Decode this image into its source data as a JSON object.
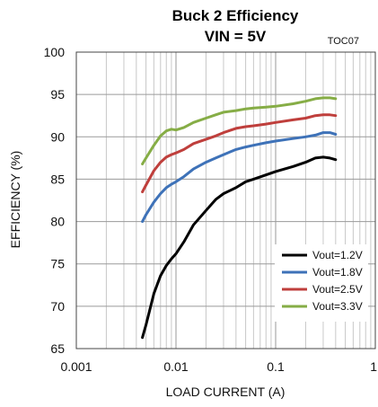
{
  "chart_data": {
    "type": "line",
    "title": "Buck 2 Efficiency",
    "subtitle": "VIN = 5V",
    "figure_id": "TOC07",
    "xlabel": "LOAD CURRENT (A)",
    "ylabel": "EFFICIENCY (%)",
    "xscale": "log",
    "xlim": [
      0.001,
      1
    ],
    "ylim": [
      65,
      100
    ],
    "x_ticks": [
      0.001,
      0.01,
      0.1,
      1
    ],
    "x_tick_labels": [
      "0.001",
      "0.01",
      "0.1",
      "1"
    ],
    "y_ticks": [
      65,
      70,
      75,
      80,
      85,
      90,
      95,
      100
    ],
    "y_tick_labels": [
      "65",
      "70",
      "75",
      "80",
      "85",
      "90",
      "95",
      "100"
    ],
    "grid": true,
    "legend_position": "bottom-right",
    "series": [
      {
        "name": "Vout=1.2V",
        "color": "#000000",
        "points": [
          [
            0.0046,
            66.3
          ],
          [
            0.005,
            67.8
          ],
          [
            0.006,
            71.5
          ],
          [
            0.007,
            73.6
          ],
          [
            0.008,
            74.8
          ],
          [
            0.009,
            75.6
          ],
          [
            0.01,
            76.2
          ],
          [
            0.012,
            77.6
          ],
          [
            0.015,
            79.6
          ],
          [
            0.02,
            81.3
          ],
          [
            0.025,
            82.6
          ],
          [
            0.03,
            83.3
          ],
          [
            0.04,
            84.0
          ],
          [
            0.05,
            84.7
          ],
          [
            0.06,
            85.0
          ],
          [
            0.08,
            85.5
          ],
          [
            0.1,
            85.9
          ],
          [
            0.15,
            86.5
          ],
          [
            0.2,
            87.0
          ],
          [
            0.25,
            87.5
          ],
          [
            0.3,
            87.6
          ],
          [
            0.35,
            87.5
          ],
          [
            0.4,
            87.3
          ]
        ]
      },
      {
        "name": "Vout=1.8V",
        "color": "#3e72b8",
        "points": [
          [
            0.0046,
            80.0
          ],
          [
            0.005,
            80.8
          ],
          [
            0.006,
            82.3
          ],
          [
            0.007,
            83.3
          ],
          [
            0.008,
            84.0
          ],
          [
            0.009,
            84.4
          ],
          [
            0.01,
            84.7
          ],
          [
            0.012,
            85.3
          ],
          [
            0.015,
            86.2
          ],
          [
            0.02,
            87.0
          ],
          [
            0.025,
            87.5
          ],
          [
            0.03,
            87.9
          ],
          [
            0.04,
            88.5
          ],
          [
            0.05,
            88.8
          ],
          [
            0.06,
            89.0
          ],
          [
            0.08,
            89.3
          ],
          [
            0.1,
            89.5
          ],
          [
            0.15,
            89.8
          ],
          [
            0.2,
            90.0
          ],
          [
            0.25,
            90.2
          ],
          [
            0.3,
            90.5
          ],
          [
            0.35,
            90.5
          ],
          [
            0.4,
            90.3
          ]
        ]
      },
      {
        "name": "Vout=2.5V",
        "color": "#bf3f3c",
        "points": [
          [
            0.0046,
            83.5
          ],
          [
            0.005,
            84.3
          ],
          [
            0.006,
            86.0
          ],
          [
            0.007,
            87.0
          ],
          [
            0.008,
            87.6
          ],
          [
            0.009,
            87.9
          ],
          [
            0.01,
            88.1
          ],
          [
            0.012,
            88.5
          ],
          [
            0.015,
            89.2
          ],
          [
            0.02,
            89.7
          ],
          [
            0.025,
            90.1
          ],
          [
            0.03,
            90.5
          ],
          [
            0.04,
            91.0
          ],
          [
            0.05,
            91.2
          ],
          [
            0.06,
            91.3
          ],
          [
            0.08,
            91.5
          ],
          [
            0.1,
            91.7
          ],
          [
            0.15,
            92.0
          ],
          [
            0.2,
            92.2
          ],
          [
            0.25,
            92.5
          ],
          [
            0.3,
            92.6
          ],
          [
            0.35,
            92.6
          ],
          [
            0.4,
            92.5
          ]
        ]
      },
      {
        "name": "Vout=3.3V",
        "color": "#86ad46",
        "points": [
          [
            0.0046,
            86.8
          ],
          [
            0.005,
            87.5
          ],
          [
            0.006,
            89.0
          ],
          [
            0.007,
            90.1
          ],
          [
            0.008,
            90.7
          ],
          [
            0.009,
            90.9
          ],
          [
            0.01,
            90.8
          ],
          [
            0.012,
            91.1
          ],
          [
            0.015,
            91.7
          ],
          [
            0.02,
            92.2
          ],
          [
            0.025,
            92.6
          ],
          [
            0.03,
            92.9
          ],
          [
            0.04,
            93.1
          ],
          [
            0.05,
            93.3
          ],
          [
            0.06,
            93.4
          ],
          [
            0.08,
            93.5
          ],
          [
            0.1,
            93.6
          ],
          [
            0.15,
            93.9
          ],
          [
            0.2,
            94.2
          ],
          [
            0.25,
            94.5
          ],
          [
            0.3,
            94.6
          ],
          [
            0.35,
            94.6
          ],
          [
            0.4,
            94.5
          ]
        ]
      }
    ]
  }
}
